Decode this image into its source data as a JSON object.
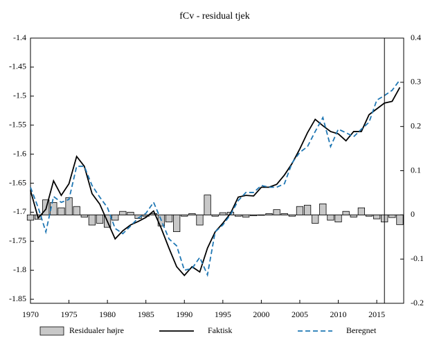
{
  "chart_data": {
    "type": "line",
    "title": "fCv - residual tjek",
    "x": [
      1970,
      1971,
      1972,
      1973,
      1974,
      1975,
      1976,
      1977,
      1978,
      1979,
      1980,
      1981,
      1982,
      1983,
      1984,
      1985,
      1986,
      1987,
      1988,
      1989,
      1990,
      1991,
      1992,
      1993,
      1994,
      1995,
      1996,
      1997,
      1998,
      1999,
      2000,
      2001,
      2002,
      2003,
      2004,
      2005,
      2006,
      2007,
      2008,
      2009,
      2010,
      2011,
      2012,
      2013,
      2014,
      2015,
      2016,
      2017,
      2018
    ],
    "series": [
      {
        "name": "Residualer højre",
        "type": "bar",
        "axis": "y2",
        "color": "#c8c8c8",
        "values": [
          -0.012,
          -0.01,
          0.034,
          0.028,
          0.016,
          0.039,
          0.019,
          -0.005,
          -0.023,
          -0.019,
          -0.028,
          -0.012,
          0.008,
          0.006,
          -0.008,
          -0.003,
          0.003,
          -0.025,
          -0.016,
          -0.038,
          -0.003,
          0.003,
          -0.023,
          0.045,
          -0.003,
          0.005,
          0.006,
          -0.003,
          -0.005,
          -0.002,
          -0.001,
          0.003,
          0.012,
          0.003,
          -0.003,
          0.019,
          0.022,
          -0.019,
          0.025,
          -0.012,
          -0.016,
          0.008,
          -0.005,
          0.016,
          -0.003,
          -0.009,
          -0.016,
          -0.006,
          -0.022
        ]
      },
      {
        "name": "Faktisk",
        "type": "line",
        "color": "#000000",
        "dash": false,
        "values": [
          -1.6625,
          -1.71,
          -1.695,
          -1.646,
          -1.671,
          -1.651,
          -1.604,
          -1.621,
          -1.668,
          -1.686,
          -1.716,
          -1.746,
          -1.732,
          -1.722,
          -1.716,
          -1.709,
          -1.698,
          -1.728,
          -1.762,
          -1.794,
          -1.809,
          -1.794,
          -1.803,
          -1.762,
          -1.734,
          -1.719,
          -1.702,
          -1.674,
          -1.671,
          -1.672,
          -1.657,
          -1.657,
          -1.652,
          -1.636,
          -1.616,
          -1.591,
          -1.563,
          -1.54,
          -1.551,
          -1.561,
          -1.565,
          -1.577,
          -1.561,
          -1.561,
          -1.532,
          -1.522,
          -1.512,
          -1.509,
          -1.485
        ]
      },
      {
        "name": "Beregnet",
        "type": "line",
        "color": "#1f77b4",
        "dash": true,
        "values": [
          -1.657,
          -1.692,
          -1.734,
          -1.673,
          -1.683,
          -1.678,
          -1.621,
          -1.621,
          -1.654,
          -1.674,
          -1.692,
          -1.728,
          -1.737,
          -1.724,
          -1.71,
          -1.702,
          -1.683,
          -1.714,
          -1.746,
          -1.758,
          -1.8,
          -1.797,
          -1.778,
          -1.808,
          -1.734,
          -1.722,
          -1.704,
          -1.68,
          -1.666,
          -1.666,
          -1.654,
          -1.657,
          -1.657,
          -1.651,
          -1.615,
          -1.597,
          -1.587,
          -1.561,
          -1.537,
          -1.587,
          -1.557,
          -1.563,
          -1.57,
          -1.557,
          -1.545,
          -1.507,
          -1.499,
          -1.49,
          -1.472
        ]
      }
    ],
    "xlim": [
      1970,
      2018.5
    ],
    "xticks": [
      1970,
      1975,
      1980,
      1985,
      1990,
      1995,
      2000,
      2005,
      2010,
      2015
    ],
    "ylim": [
      -1.857,
      -1.4
    ],
    "yticks": [
      -1.4,
      -1.45,
      -1.5,
      -1.55,
      -1.6,
      -1.65,
      -1.7,
      -1.75,
      -1.8,
      -1.85
    ],
    "y2lim": [
      -0.2,
      0.4
    ],
    "y2ticks": [
      0.4,
      0.3,
      0.2,
      0.1,
      0,
      -0.1,
      -0.2
    ],
    "vline": 2016,
    "legend": "bottom"
  }
}
